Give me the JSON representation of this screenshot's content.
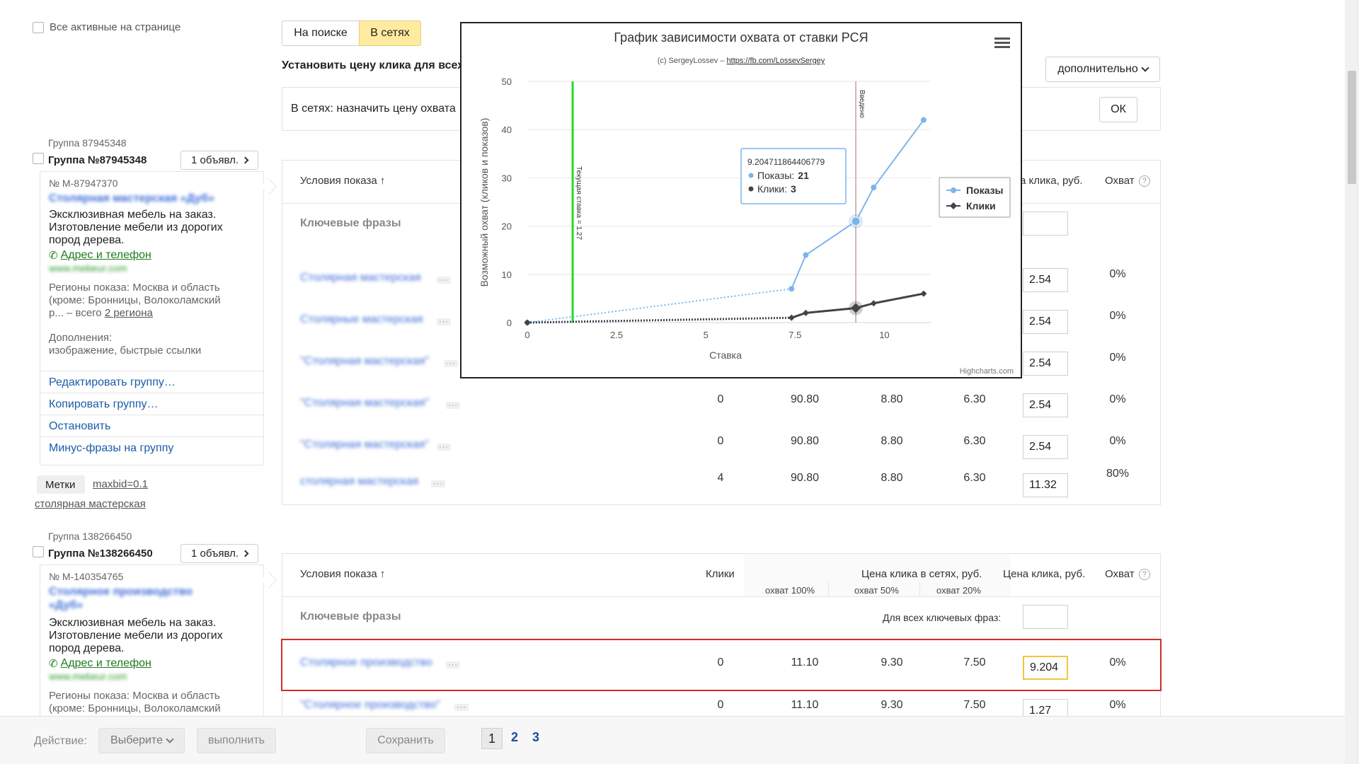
{
  "top": {
    "all_active_label": "Все активные на странице",
    "tab_search": "На поиске",
    "tab_networks": "В сетях",
    "set_price_label": "Установить цену клика для всех",
    "networks_assign": "В сетях:  назначить цену охвата",
    "extra_dropdown": "дополнительно",
    "ok_button": "ОК"
  },
  "group1": {
    "group_small": "Группа 87945348",
    "group_title": "Группа №87945348",
    "ads_button": "1 объявл.",
    "ad_number": "№ M-87947370",
    "ad_title_blurred": "Столярная мастерская «Дуб»",
    "ad_text_1": "Эксклюзивная мебель на заказ.",
    "ad_text_2": "Изготовление мебели из дорогих",
    "ad_text_3": "пород дерева.",
    "address_link": "Адрес и телефон",
    "url_blurred": "www.mebeur.com",
    "regions_1": "Регионы показа: Москва и область",
    "regions_2": "(кроме: Бронницы, Волоколамский",
    "regions_3": "р... – всего",
    "regions_link": "2 региона",
    "extras_label": "Дополнения:",
    "extras_value": "изображение, быстрые ссылки",
    "menu": [
      "Редактировать группу…",
      "Копировать группу…",
      "Остановить",
      "Минус-фразы на группу"
    ],
    "tags_label": "Метки",
    "tag_maxbid": "maxbid=0.1",
    "tag_workshop": "столярная мастерская"
  },
  "table1": {
    "col_conditions": "Условия показа",
    "col_price": "а клика, руб.",
    "col_reach": "Охват",
    "keywords_label": "Ключевые фразы",
    "rows": [
      {
        "phrase": "Столярная мастерская",
        "clicks": "",
        "c100": "",
        "c50": "",
        "c20": "",
        "price": "2.54",
        "reach": "0%"
      },
      {
        "phrase": "Столярные мастерская",
        "clicks": "",
        "c100": "",
        "c50": "",
        "c20": "",
        "price": "2.54",
        "reach": "0%"
      },
      {
        "phrase": "\"Столярная мастерская\"",
        "clicks": "",
        "c100": "",
        "c50": "",
        "c20": "",
        "price": "2.54",
        "reach": "0%"
      },
      {
        "phrase": "\"Столярная мастерская\"",
        "clicks": "0",
        "c100": "90.80",
        "c50": "8.80",
        "c20": "6.30",
        "price": "2.54",
        "reach": "0%"
      },
      {
        "phrase": "\"Столярная мастерская\"",
        "clicks": "0",
        "c100": "90.80",
        "c50": "8.80",
        "c20": "6.30",
        "price": "2.54",
        "reach": "0%"
      },
      {
        "phrase": "столярная мастерская",
        "clicks": "4",
        "c100": "90.80",
        "c50": "8.80",
        "c20": "6.30",
        "price": "11.32",
        "reach": "80%"
      }
    ]
  },
  "group2": {
    "group_small": "Группа 138266450",
    "group_title": "Группа №138266450",
    "ads_button": "1 объявл.",
    "ad_number": "№ M-140354765",
    "ad_title_blurred_1": "Столярное производство",
    "ad_title_blurred_2": "«Дуб»",
    "ad_text_1": "Эксклюзивная мебель на заказ.",
    "ad_text_2": "Изготовление мебели из дорогих",
    "ad_text_3": "пород дерева.",
    "address_link": "Адрес и телефон",
    "url_blurred": "www.mebeur.com",
    "regions_1": "Регионы показа: Москва и область",
    "regions_2": "(кроме: Бронницы, Волоколамский"
  },
  "table2": {
    "col_conditions": "Условия показа",
    "col_clicks": "Клики",
    "col_net_price": "Цена клика в сетях, руб.",
    "col_price": "Цена клика, руб.",
    "col_reach": "Охват",
    "sub_100": "охват 100%",
    "sub_50": "охват 50%",
    "sub_20": "охват 20%",
    "keywords_label": "Ключевые фразы",
    "for_all_label": "Для всех ключевых фраз:",
    "rows": [
      {
        "phrase": "Столярное производство",
        "clicks": "0",
        "c100": "11.10",
        "c50": "9.30",
        "c20": "7.50",
        "price": "9.204",
        "reach": "0%"
      },
      {
        "phrase": "\"Столярное производство\"",
        "clicks": "0",
        "c100": "11.10",
        "c50": "9.30",
        "c20": "7.50",
        "price": "1.27",
        "reach": "0%"
      }
    ]
  },
  "bottom": {
    "action_label": "Действие:",
    "select_label": "Выберите",
    "execute_label": "выполнить",
    "save_label": "Сохранить",
    "pages": [
      "1",
      "2",
      "3"
    ]
  },
  "chart_data": {
    "type": "line",
    "title": "График зависимости охвата от ставки РСЯ",
    "subtitle_prefix": "(c) SergeyLossev – ",
    "subtitle_link": "https://fb.com/LossevSergey",
    "xlabel": "Ставка",
    "ylabel": "Возможный охват (кликов и показов)",
    "xlim": [
      0,
      11.3
    ],
    "ylim": [
      0,
      50
    ],
    "xticks": [
      "0",
      "2.5",
      "5",
      "7.5",
      "10"
    ],
    "xtick_values": [
      0,
      2.5,
      5,
      7.5,
      10
    ],
    "yticks": [
      "0",
      "10",
      "20",
      "30",
      "40",
      "50"
    ],
    "ytick_values": [
      0,
      10,
      20,
      30,
      40,
      50
    ],
    "grid": true,
    "legend_position": "right",
    "credits": "Highcharts.com",
    "series": [
      {
        "name": "Показы",
        "color": "#7cb5ec",
        "x": [
          0,
          7.4,
          7.8,
          9.2,
          9.7,
          11.1
        ],
        "y": [
          0,
          7,
          14,
          21,
          28,
          42
        ],
        "dotted_until_index": 1
      },
      {
        "name": "Клики",
        "color": "#434348",
        "x": [
          0,
          7.4,
          7.8,
          9.2,
          9.7,
          11.1
        ],
        "y": [
          0,
          1,
          2,
          3,
          4,
          6
        ],
        "dotted_until_index": 1
      }
    ],
    "current_bid": {
      "value": 1.27,
      "label": "Текущая ставка = 1.27",
      "color": "#22dd22"
    },
    "entered_bid": {
      "value": 9.2,
      "label": "Введено",
      "color": "#c0a0a0"
    },
    "tooltip": {
      "x_label": "9.204711864406779",
      "series1": "Показы:",
      "value1": "21",
      "series2": "Клики:",
      "value2": "3"
    }
  }
}
